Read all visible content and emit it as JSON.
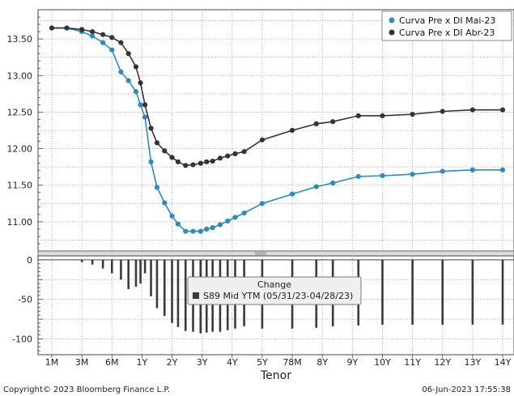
{
  "chart_data": {
    "type": "line",
    "xlabel": "Tenor",
    "tenor_labels": [
      "1M",
      "3M",
      "6M",
      "1Y",
      "2Y",
      "3Y",
      "4Y",
      "5Y",
      "78M",
      "8Y",
      "9Y",
      "10Y",
      "11Y",
      "12Y",
      "13Y",
      "14Y"
    ],
    "upper": {
      "ylim": [
        10.6,
        13.9
      ],
      "yticks": [
        "13.50",
        "13.00",
        "12.50",
        "12.00",
        "11.50",
        "11.00"
      ],
      "ytick_values": [
        13.5,
        13.0,
        12.5,
        12.0,
        11.5,
        11.0
      ],
      "legend_position": "top-right",
      "series": [
        {
          "name": "Curva Pre x DI Mai-23",
          "color": "#2a8bc0",
          "points": [
            [
              0.0,
              13.65
            ],
            [
              0.5,
              13.65
            ],
            [
              1.0,
              13.6
            ],
            [
              1.35,
              13.54
            ],
            [
              1.7,
              13.45
            ],
            [
              2.0,
              13.35
            ],
            [
              2.3,
              13.05
            ],
            [
              2.55,
              12.93
            ],
            [
              2.8,
              12.78
            ],
            [
              2.95,
              12.6
            ],
            [
              3.1,
              12.43
            ],
            [
              3.3,
              11.82
            ],
            [
              3.5,
              11.47
            ],
            [
              3.75,
              11.26
            ],
            [
              4.0,
              11.08
            ],
            [
              4.2,
              10.97
            ],
            [
              4.45,
              10.87
            ],
            [
              4.7,
              10.87
            ],
            [
              4.95,
              10.87
            ],
            [
              5.15,
              10.9
            ],
            [
              5.35,
              10.92
            ],
            [
              5.6,
              10.96
            ],
            [
              5.85,
              11.01
            ],
            [
              6.1,
              11.06
            ],
            [
              6.4,
              11.12
            ],
            [
              7.0,
              11.25
            ],
            [
              8.0,
              11.38
            ],
            [
              8.8,
              11.48
            ],
            [
              9.35,
              11.53
            ],
            [
              10.2,
              11.62
            ],
            [
              11.0,
              11.63
            ],
            [
              12.0,
              11.65
            ],
            [
              13.0,
              11.69
            ],
            [
              14.0,
              11.71
            ],
            [
              15.0,
              11.71
            ]
          ]
        },
        {
          "name": "Curva Pre x DI Abr-23",
          "color": "#333333",
          "points": [
            [
              0.0,
              13.65
            ],
            [
              0.5,
              13.65
            ],
            [
              1.0,
              13.63
            ],
            [
              1.35,
              13.6
            ],
            [
              1.7,
              13.56
            ],
            [
              2.0,
              13.52
            ],
            [
              2.3,
              13.45
            ],
            [
              2.55,
              13.3
            ],
            [
              2.8,
              13.12
            ],
            [
              2.95,
              12.9
            ],
            [
              3.1,
              12.6
            ],
            [
              3.3,
              12.28
            ],
            [
              3.5,
              12.08
            ],
            [
              3.75,
              11.97
            ],
            [
              4.0,
              11.88
            ],
            [
              4.2,
              11.82
            ],
            [
              4.45,
              11.77
            ],
            [
              4.7,
              11.78
            ],
            [
              4.95,
              11.8
            ],
            [
              5.15,
              11.82
            ],
            [
              5.35,
              11.83
            ],
            [
              5.6,
              11.87
            ],
            [
              5.85,
              11.9
            ],
            [
              6.1,
              11.93
            ],
            [
              6.4,
              11.96
            ],
            [
              7.0,
              12.12
            ],
            [
              8.0,
              12.25
            ],
            [
              8.8,
              12.34
            ],
            [
              9.35,
              12.37
            ],
            [
              10.2,
              12.45
            ],
            [
              11.0,
              12.45
            ],
            [
              12.0,
              12.47
            ],
            [
              13.0,
              12.51
            ],
            [
              14.0,
              12.53
            ],
            [
              15.0,
              12.53
            ]
          ]
        }
      ]
    },
    "lower": {
      "ylim": [
        -120,
        5
      ],
      "yticks": [
        "0",
        "-50",
        "-100"
      ],
      "ytick_values": [
        0,
        -50,
        -100
      ],
      "legend_title": "Change",
      "legend_entry": "S89 Mid YTM (05/31/23-04/28/23)",
      "bar_color": "#3a3a3a",
      "bars": [
        [
          0.0,
          0
        ],
        [
          0.5,
          0
        ],
        [
          1.0,
          -3
        ],
        [
          1.35,
          -6
        ],
        [
          1.7,
          -11
        ],
        [
          2.0,
          -17
        ],
        [
          2.3,
          -25
        ],
        [
          2.55,
          -37
        ],
        [
          2.8,
          -34
        ],
        [
          2.95,
          -30
        ],
        [
          3.1,
          -17
        ],
        [
          3.3,
          -46
        ],
        [
          3.5,
          -61
        ],
        [
          3.75,
          -71
        ],
        [
          4.0,
          -80
        ],
        [
          4.2,
          -85
        ],
        [
          4.45,
          -90
        ],
        [
          4.7,
          -91
        ],
        [
          4.95,
          -93
        ],
        [
          5.15,
          -92
        ],
        [
          5.35,
          -91
        ],
        [
          5.6,
          -91
        ],
        [
          5.85,
          -89
        ],
        [
          6.1,
          -87
        ],
        [
          6.4,
          -84
        ],
        [
          7.0,
          -87
        ],
        [
          8.0,
          -87
        ],
        [
          8.8,
          -86
        ],
        [
          9.35,
          -84
        ],
        [
          10.2,
          -83
        ],
        [
          11.0,
          -82
        ],
        [
          12.0,
          -82
        ],
        [
          13.0,
          -82
        ],
        [
          14.0,
          -82
        ],
        [
          15.0,
          -82
        ]
      ]
    }
  },
  "footer": {
    "copyright": "Copyright© 2023 Bloomberg Finance L.P.",
    "timestamp": "06-Jun-2023 17:55:38"
  }
}
